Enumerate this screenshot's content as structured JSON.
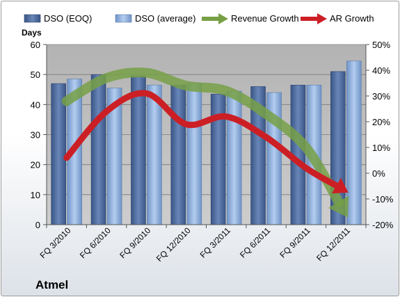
{
  "company_label": "Atmel",
  "colors": {
    "dso_eoq": "#4f6a9c",
    "dso_average": "#8fb1df",
    "revenue_growth": "#77a046",
    "ar_growth": "#cc1f25",
    "plot_background": "#c0c0c0"
  },
  "chart_data": {
    "type": "bar",
    "title": "",
    "categories": [
      "FQ 3/2010",
      "FQ 6/2010",
      "FQ 9/2010",
      "FQ 12/2010",
      "FQ 3/2011",
      "FQ 6/2011",
      "FQ 9/2011",
      "FQ 12/2011"
    ],
    "ylabel": "Days",
    "ylim": [
      0,
      60
    ],
    "yticks": [
      "0",
      "10",
      "20",
      "30",
      "40",
      "50",
      "60"
    ],
    "y2lim": [
      -0.2,
      0.5
    ],
    "y2ticks": [
      "-20%",
      "-10%",
      "0%",
      "10%",
      "20%",
      "30%",
      "40%",
      "50%"
    ],
    "grid": true,
    "legend_position": "top",
    "series": [
      {
        "name": "DSO (EOQ)",
        "type": "bar",
        "axis": "left",
        "values": [
          47,
          50,
          49.5,
          46.5,
          43.5,
          46,
          46.5,
          51
        ]
      },
      {
        "name": "DSO (average)",
        "type": "bar",
        "axis": "left",
        "values": [
          48.5,
          45.5,
          46.5,
          47,
          44.5,
          44,
          46.5,
          54.5
        ]
      },
      {
        "name": "Revenue Growth",
        "type": "line-arrow",
        "axis": "right",
        "values": [
          0.28,
          0.37,
          0.39,
          0.34,
          0.32,
          0.23,
          0.1,
          -0.16
        ]
      },
      {
        "name": "AR Growth",
        "type": "line-arrow",
        "axis": "right",
        "values": [
          0.06,
          0.24,
          0.31,
          0.19,
          0.22,
          0.14,
          0.02,
          -0.07
        ]
      }
    ]
  }
}
